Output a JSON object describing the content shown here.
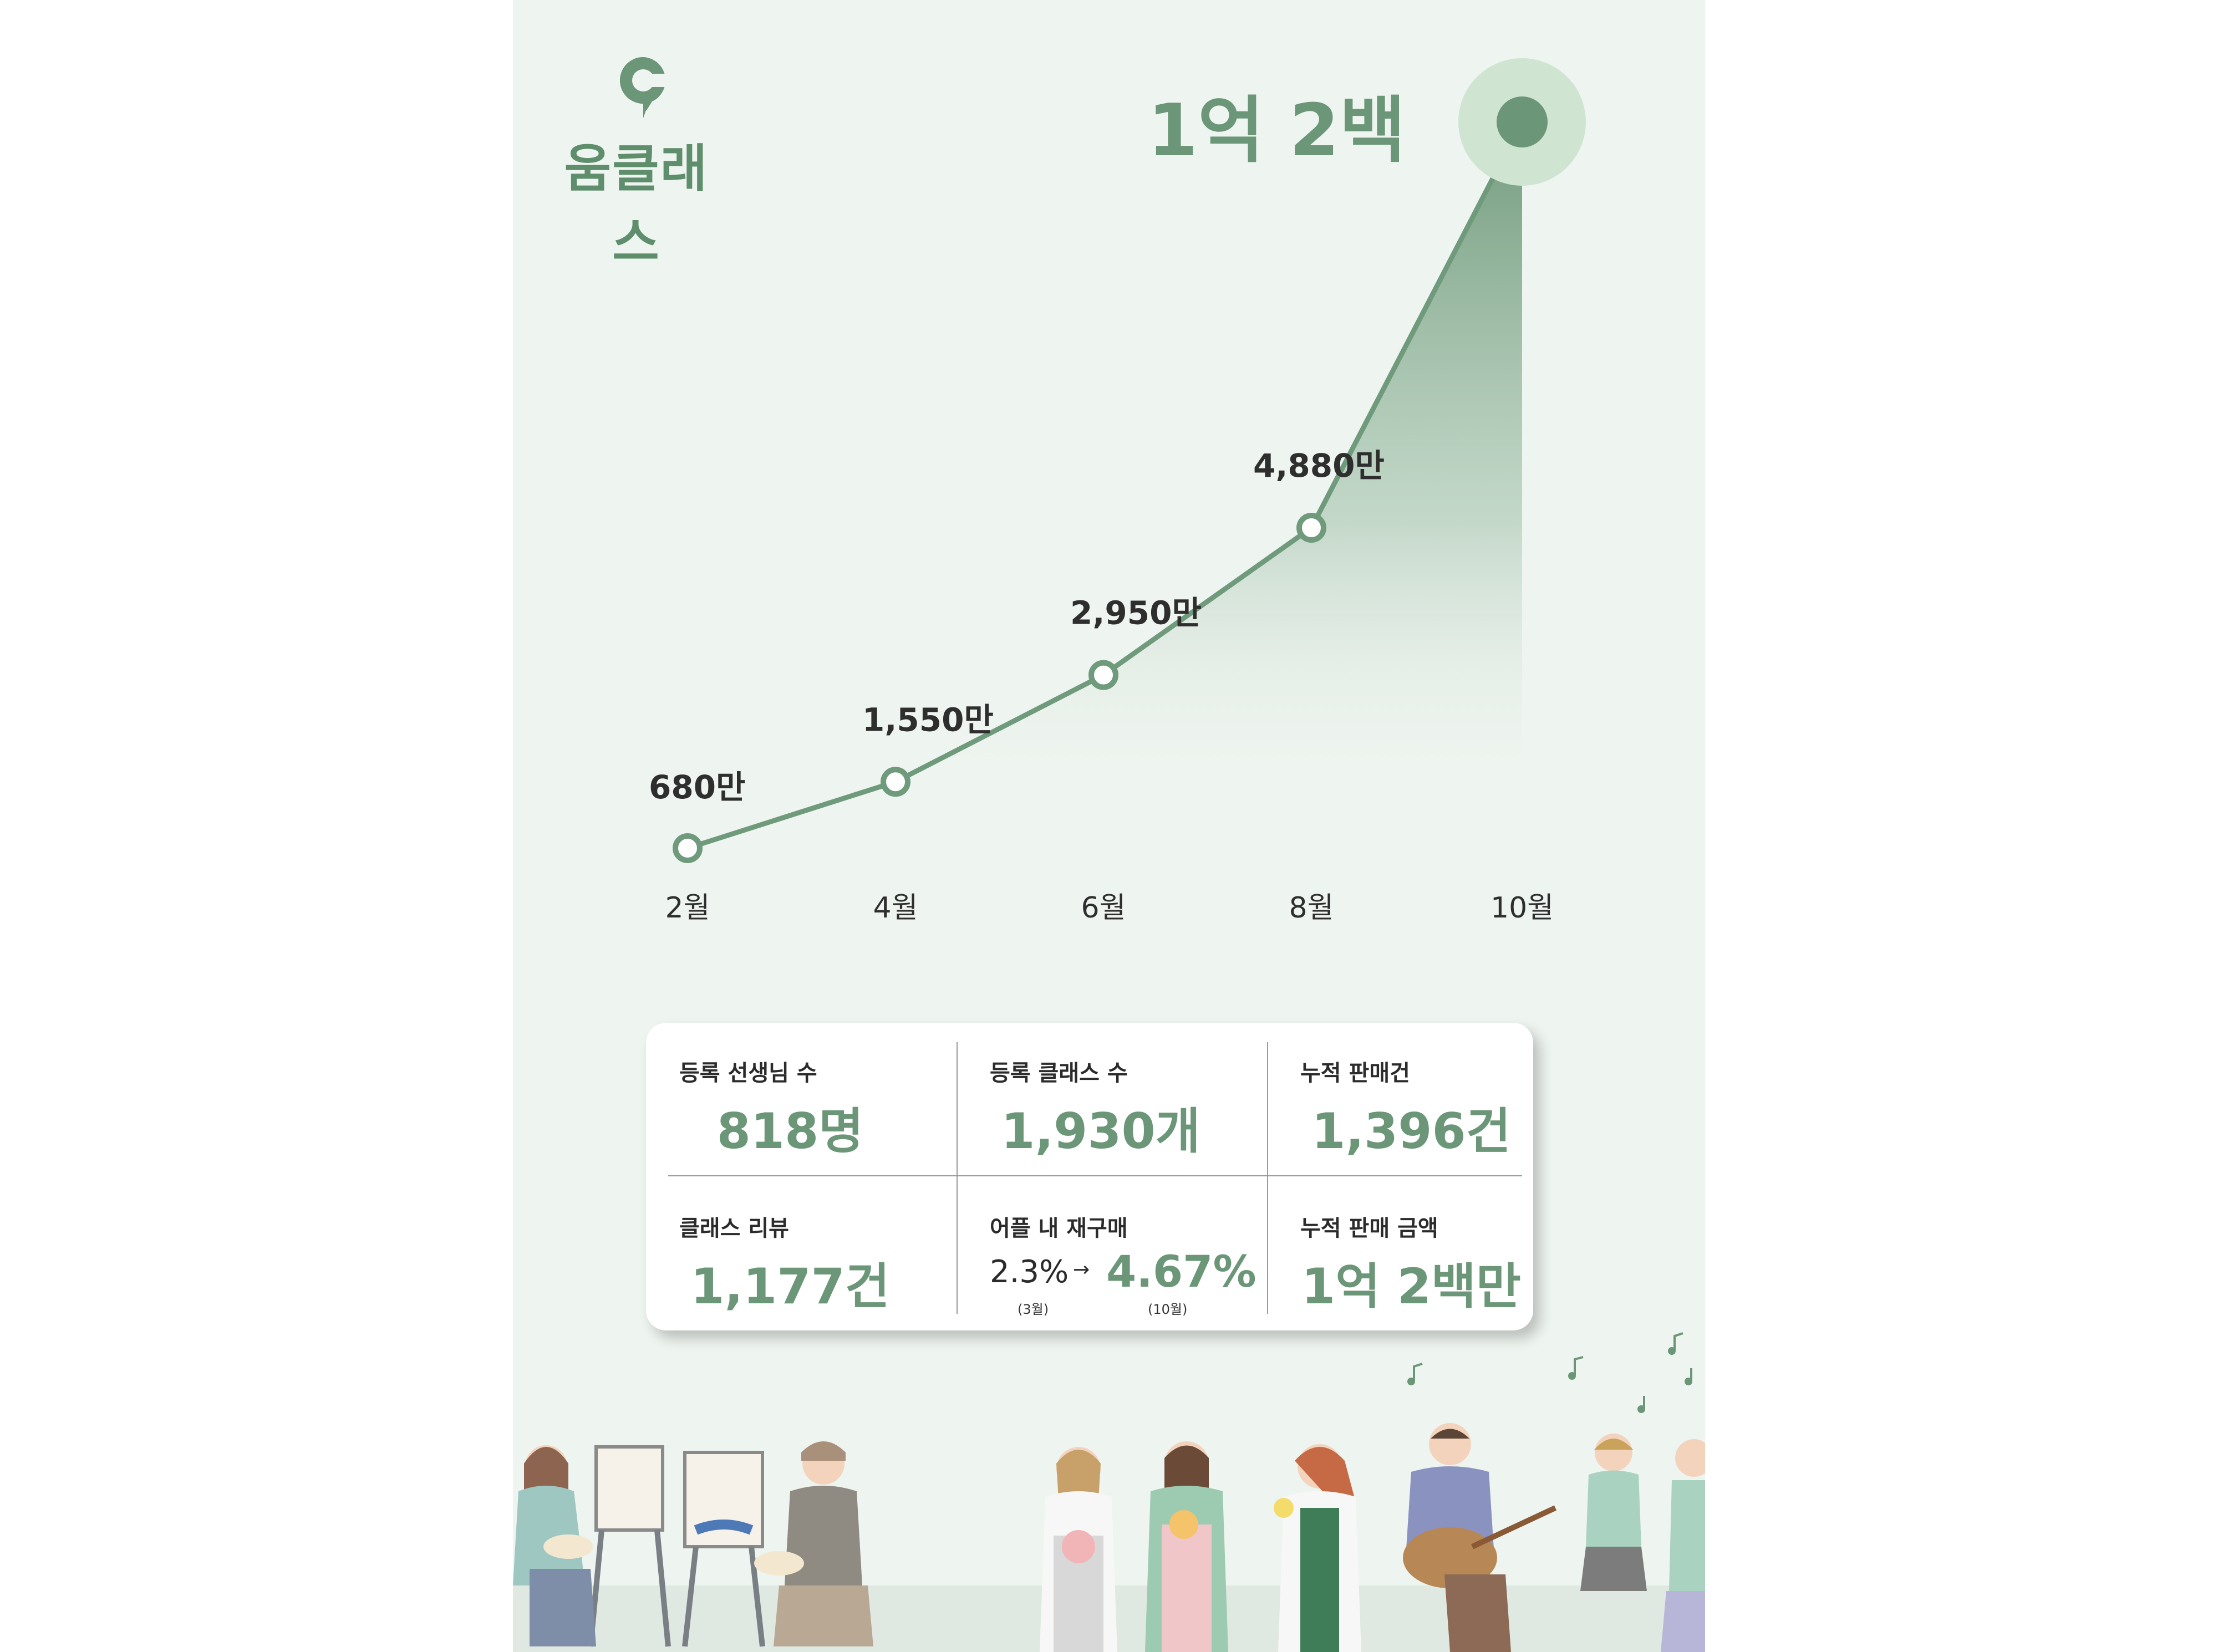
{
  "brand": {
    "name": "움클래스",
    "logo_icon": "c-location-pin-icon"
  },
  "colors": {
    "accent": "#6b9677",
    "line": "#6f9a7c",
    "background": "#eef4ef",
    "highlight_halo": "#cfe4d1"
  },
  "chart_data": {
    "type": "line",
    "categories": [
      "2월",
      "4월",
      "6월",
      "8월",
      "10월"
    ],
    "values": [
      680,
      1550,
      2950,
      4880,
      10200
    ],
    "unit": "만",
    "data_labels": [
      "680만",
      "1,550만",
      "2,950만",
      "4,880만",
      "1억 2백"
    ],
    "title": "",
    "xlabel": "",
    "ylabel": "",
    "ylim": [
      680,
      10200
    ],
    "grid": false,
    "highlight_last": true,
    "area_fill": "gradient under curve"
  },
  "stats": [
    {
      "label": "등록 선생님 수",
      "value": "818명"
    },
    {
      "label": "등록 클래스 수",
      "value": "1,930개"
    },
    {
      "label": "누적 판매건",
      "value": "1,396건"
    },
    {
      "label": "클래스 리뷰",
      "value": "1,177건"
    },
    {
      "label": "어플 내 재구매",
      "from": "2.3%",
      "from_note": "(3월)",
      "arrow": "→",
      "to": "4.67%",
      "to_note": "(10월)"
    },
    {
      "label": "누적 판매 금액",
      "value": "1억 2백만"
    }
  ],
  "illustration": {
    "subject": "people-doing-hobby-classes-illustration"
  }
}
